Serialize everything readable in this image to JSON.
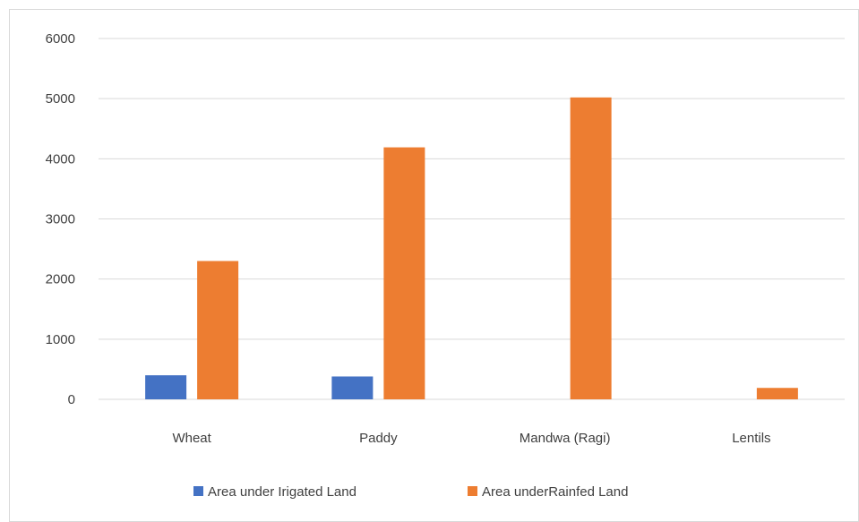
{
  "chart_data": {
    "type": "bar",
    "title": "",
    "xlabel": "",
    "ylabel": "",
    "categories": [
      "Wheat",
      "Paddy",
      "Mandwa (Ragi)",
      "Lentils"
    ],
    "series": [
      {
        "name": "Area under Irigated Land",
        "color": "#4472c4",
        "values": [
          400,
          380,
          0,
          0
        ]
      },
      {
        "name": "Area underRainfed Land",
        "color": "#ed7d31",
        "values": [
          2300,
          4190,
          5020,
          190
        ]
      }
    ],
    "ylim": [
      0,
      6000
    ],
    "yticks": [
      0,
      1000,
      2000,
      3000,
      4000,
      5000,
      6000
    ],
    "grid": true,
    "legend_position": "bottom"
  }
}
